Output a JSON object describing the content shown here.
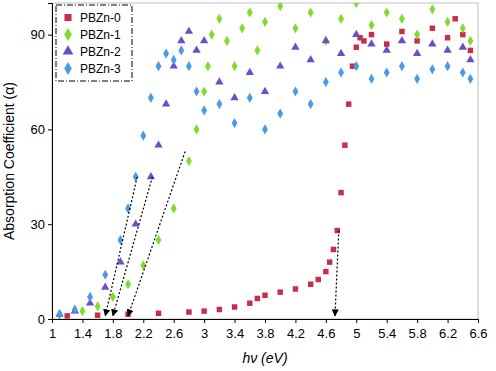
{
  "chart_data": {
    "type": "scatter",
    "x_label": "hν (eV)",
    "y_label": "Absorption Coefficient (α)",
    "xlim": [
      1,
      6.6
    ],
    "xticks": [
      1,
      1.4,
      1.8,
      2.2,
      2.6,
      3,
      3.4,
      3.8,
      4.2,
      4.6,
      5,
      5.4,
      5.8,
      6.2,
      6.6
    ],
    "ylim": [
      0,
      100
    ],
    "yticks": [
      0,
      30,
      60,
      90
    ],
    "grid": false,
    "legend": "top-left",
    "series": [
      {
        "name": "PBZn-0",
        "color": "#c62f4b",
        "marker": "square",
        "x": [
          1.2,
          1.6,
          2.0,
          2.4,
          2.8,
          3.0,
          3.2,
          3.4,
          3.6,
          3.7,
          3.8,
          4.0,
          4.2,
          4.4,
          4.5,
          4.6,
          4.65,
          4.7,
          4.75,
          4.8,
          4.85,
          4.9,
          4.95,
          5.0,
          5.05,
          5.1,
          5.2,
          5.4,
          5.6,
          5.8,
          6.0,
          6.2,
          6.3,
          6.4,
          6.5
        ],
        "values": [
          1.0,
          1.2,
          1.5,
          1.8,
          2.2,
          2.5,
          3,
          3.8,
          5,
          6.5,
          7.5,
          8.5,
          9.5,
          11,
          12.5,
          15,
          18,
          22,
          28,
          40,
          55,
          68,
          80,
          86,
          89,
          88,
          90,
          87,
          91,
          88,
          92,
          89,
          95,
          90,
          85
        ]
      },
      {
        "name": "PBZn-1",
        "color": "#7fdc2c",
        "marker": "diamond",
        "x": [
          1.1,
          1.4,
          1.6,
          1.8,
          2.0,
          2.2,
          2.4,
          2.6,
          2.8,
          2.9,
          3.0,
          3.05,
          3.1,
          3.2,
          3.3,
          3.4,
          3.5,
          3.6,
          3.7,
          3.8,
          4.0,
          4.2,
          4.4,
          4.6,
          4.8,
          5.0,
          5.2,
          5.4,
          5.6,
          5.8,
          6.0,
          6.2,
          6.4,
          6.5
        ],
        "values": [
          1.5,
          2.5,
          4,
          7,
          11,
          17,
          25,
          35,
          50,
          60,
          72,
          80,
          90,
          95,
          88,
          80,
          92,
          97,
          85,
          94,
          99,
          92,
          97,
          88,
          95,
          100,
          93,
          97,
          95,
          90,
          98,
          94,
          92,
          88
        ]
      },
      {
        "name": "PBZn-2",
        "color": "#6a4fc8",
        "marker": "triangle",
        "x": [
          1.1,
          1.3,
          1.5,
          1.7,
          1.9,
          2.1,
          2.3,
          2.4,
          2.5,
          2.6,
          2.7,
          2.8,
          2.9,
          3.0,
          3.2,
          3.4,
          3.6,
          3.8,
          4.0,
          4.2,
          4.4,
          4.6,
          4.8,
          5.0,
          5.2,
          5.4,
          5.6,
          5.8,
          6.0,
          6.2,
          6.4,
          6.5
        ],
        "values": [
          1.5,
          2.5,
          5,
          10,
          18,
          30,
          45,
          55,
          68,
          80,
          88,
          91,
          85,
          88,
          75,
          70,
          78,
          72,
          80,
          86,
          82,
          88,
          84,
          90,
          87,
          85,
          88,
          84,
          87,
          85,
          86,
          82
        ]
      },
      {
        "name": "PBZn-3",
        "color": "#4a9be6",
        "marker": "diamond",
        "x": [
          1.1,
          1.3,
          1.5,
          1.7,
          1.9,
          2.0,
          2.1,
          2.2,
          2.3,
          2.4,
          2.5,
          2.6,
          2.7,
          2.8,
          2.9,
          3.0,
          3.2,
          3.4,
          3.6,
          3.8,
          4.0,
          4.2,
          4.4,
          4.6,
          4.8,
          5.0,
          5.2,
          5.4,
          5.6,
          5.8,
          6.0,
          6.2,
          6.4,
          6.5
        ],
        "values": [
          1.5,
          3,
          7,
          14,
          25,
          35,
          45,
          58,
          70,
          80,
          84,
          82,
          85,
          80,
          72,
          66,
          68,
          62,
          70,
          60,
          65,
          72,
          68,
          75,
          78,
          80,
          76,
          78,
          80,
          76,
          79,
          80,
          78,
          76
        ]
      }
    ],
    "tangent_lines": [
      {
        "x": [
          2.12,
          1.7
        ],
        "y": [
          45,
          1
        ]
      },
      {
        "x": [
          2.32,
          1.8
        ],
        "y": [
          45,
          1
        ]
      },
      {
        "x": [
          2.75,
          2.0
        ],
        "y": [
          53,
          1
        ]
      },
      {
        "x": [
          4.77,
          4.72
        ],
        "y": [
          28,
          1
        ]
      }
    ]
  }
}
